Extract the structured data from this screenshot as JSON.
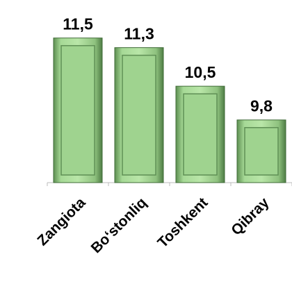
{
  "chart_data": {
    "type": "bar",
    "categories": [
      "Zangiota",
      "Bo‘stonliq",
      "Toshkent",
      "Qibray"
    ],
    "values": [
      11.5,
      11.3,
      10.5,
      9.8
    ],
    "value_labels": [
      "11,5",
      "11,3",
      "10,5",
      "9,8"
    ],
    "color": "#9fd38f",
    "ylim": [
      8.5,
      12
    ]
  }
}
